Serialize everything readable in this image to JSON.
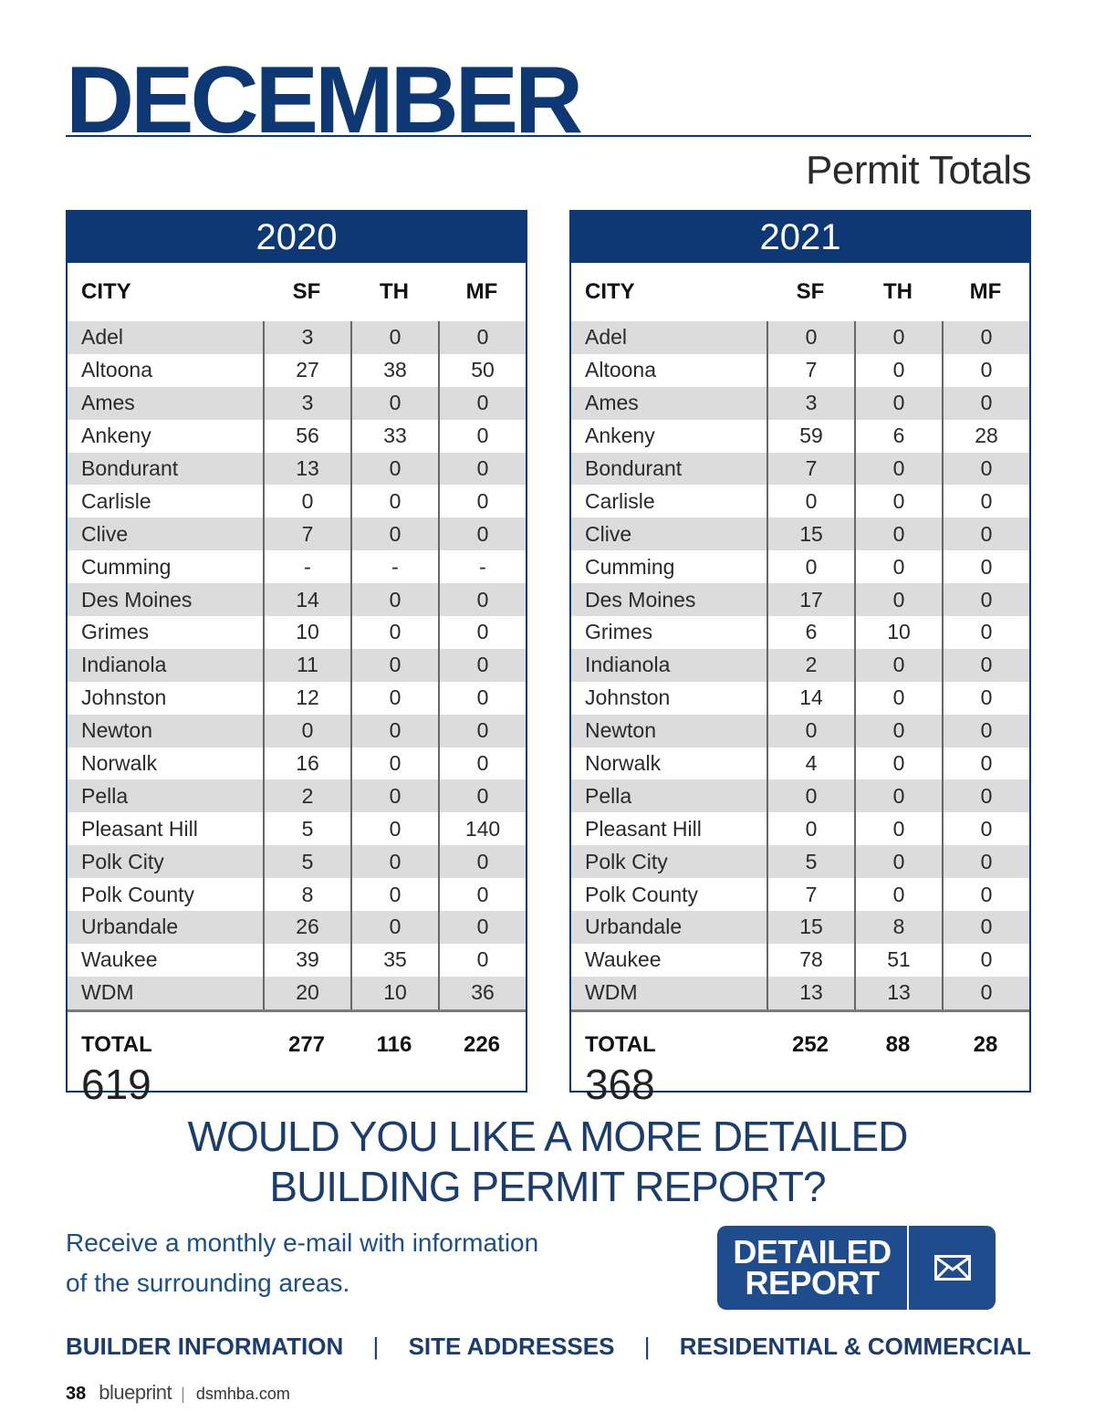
{
  "header": {
    "title": "DECEMBER",
    "subtitle": "Permit Totals"
  },
  "tables": [
    {
      "year": "2020",
      "columns": [
        "CITY",
        "SF",
        "TH",
        "MF"
      ],
      "rows": [
        [
          "Adel",
          "3",
          "0",
          "0"
        ],
        [
          "Altoona",
          "27",
          "38",
          "50"
        ],
        [
          "Ames",
          "3",
          "0",
          "0"
        ],
        [
          "Ankeny",
          "56",
          "33",
          "0"
        ],
        [
          "Bondurant",
          "13",
          "0",
          "0"
        ],
        [
          "Carlisle",
          "0",
          "0",
          "0"
        ],
        [
          "Clive",
          "7",
          "0",
          "0"
        ],
        [
          "Cumming",
          "-",
          "-",
          "-"
        ],
        [
          "Des Moines",
          "14",
          "0",
          "0"
        ],
        [
          "Grimes",
          "10",
          "0",
          "0"
        ],
        [
          "Indianola",
          "11",
          "0",
          "0"
        ],
        [
          "Johnston",
          "12",
          "0",
          "0"
        ],
        [
          "Newton",
          "0",
          "0",
          "0"
        ],
        [
          "Norwalk",
          "16",
          "0",
          "0"
        ],
        [
          "Pella",
          "2",
          "0",
          "0"
        ],
        [
          "Pleasant Hill",
          "5",
          "0",
          "140"
        ],
        [
          "Polk City",
          "5",
          "0",
          "0"
        ],
        [
          "Polk County",
          "8",
          "0",
          "0"
        ],
        [
          "Urbandale",
          "26",
          "0",
          "0"
        ],
        [
          "Waukee",
          "39",
          "35",
          "0"
        ],
        [
          "WDM",
          "20",
          "10",
          "36"
        ]
      ],
      "total": [
        "TOTAL",
        "277",
        "116",
        "226"
      ],
      "grand_total": "619"
    },
    {
      "year": "2021",
      "columns": [
        "CITY",
        "SF",
        "TH",
        "MF"
      ],
      "rows": [
        [
          "Adel",
          "0",
          "0",
          "0"
        ],
        [
          "Altoona",
          "7",
          "0",
          "0"
        ],
        [
          "Ames",
          "3",
          "0",
          "0"
        ],
        [
          "Ankeny",
          "59",
          "6",
          "28"
        ],
        [
          "Bondurant",
          "7",
          "0",
          "0"
        ],
        [
          "Carlisle",
          "0",
          "0",
          "0"
        ],
        [
          "Clive",
          "15",
          "0",
          "0"
        ],
        [
          "Cumming",
          "0",
          "0",
          "0"
        ],
        [
          "Des Moines",
          "17",
          "0",
          "0"
        ],
        [
          "Grimes",
          "6",
          "10",
          "0"
        ],
        [
          "Indianola",
          "2",
          "0",
          "0"
        ],
        [
          "Johnston",
          "14",
          "0",
          "0"
        ],
        [
          "Newton",
          "0",
          "0",
          "0"
        ],
        [
          "Norwalk",
          "4",
          "0",
          "0"
        ],
        [
          "Pella",
          "0",
          "0",
          "0"
        ],
        [
          "Pleasant Hill",
          "0",
          "0",
          "0"
        ],
        [
          "Polk City",
          "5",
          "0",
          "0"
        ],
        [
          "Polk County",
          "7",
          "0",
          "0"
        ],
        [
          "Urbandale",
          "15",
          "8",
          "0"
        ],
        [
          "Waukee",
          "78",
          "51",
          "0"
        ],
        [
          "WDM",
          "13",
          "13",
          "0"
        ]
      ],
      "total": [
        "TOTAL",
        "252",
        "88",
        "28"
      ],
      "grand_total": "368"
    }
  ],
  "cta": {
    "heading_line1": "WOULD YOU LIKE A MORE DETAILED",
    "heading_line2": "BUILDING PERMIT REPORT?",
    "text_line1": "Receive a monthly e-mail with information",
    "text_line2": "of the surrounding areas.",
    "button_line1": "DETAILED",
    "button_line2": "REPORT",
    "button_icon": "envelope-icon"
  },
  "links": [
    "BUILDER INFORMATION",
    "SITE ADDRESSES",
    "RESIDENTIAL & COMMERCIAL"
  ],
  "link_separator": "|",
  "footer": {
    "page_number": "38",
    "brand": "blueprint",
    "separator": "|",
    "site": "dsmhba.com"
  },
  "colors": {
    "navy": "#0d3874",
    "row_shade": "#dcdcdc",
    "button": "#1e4c8c",
    "link": "#1b3d6e"
  }
}
